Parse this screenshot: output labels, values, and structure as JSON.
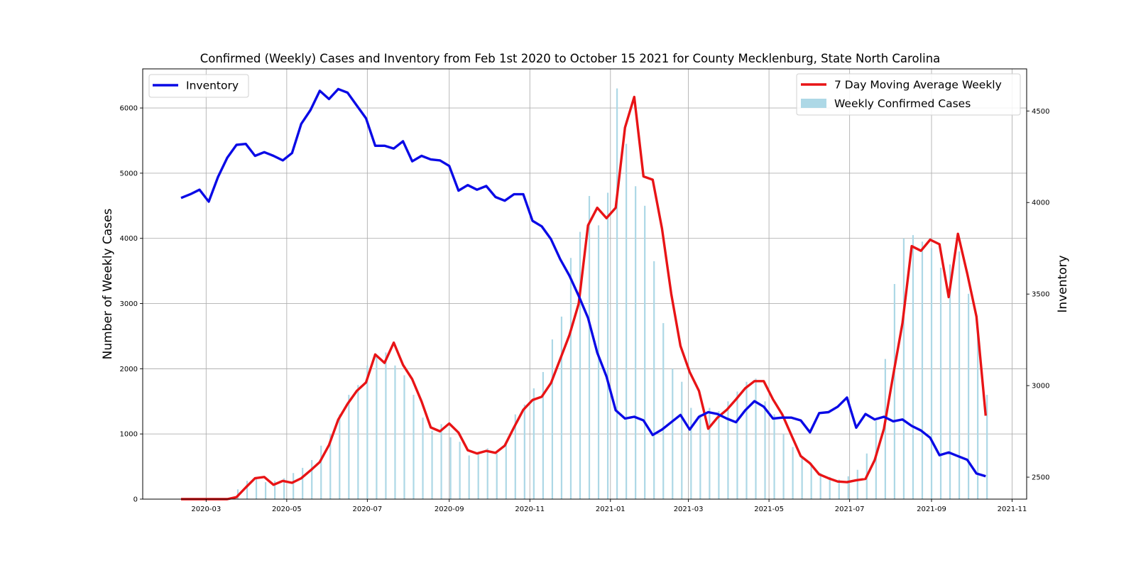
{
  "chart_data": {
    "type": "bar+line",
    "title": "Confirmed (Weekly) Cases and Inventory from Feb 1st 2020 to October 15 2021 for County Mecklenburg, State North Carolina",
    "ylabel_left": "Number of Weekly Cases",
    "ylabel_right": "Inventory",
    "xlim": [
      "2020-01-13",
      "2021-11-12"
    ],
    "ylim_left": [
      0,
      6600
    ],
    "ylim_right": [
      2380,
      4730
    ],
    "grid": true,
    "x_ticks": [
      "2020-03",
      "2020-05",
      "2020-07",
      "2020-09",
      "2020-11",
      "2021-01",
      "2021-03",
      "2021-05",
      "2021-07",
      "2021-09",
      "2021-11"
    ],
    "y_ticks_left": [
      "0",
      "1000",
      "2000",
      "3000",
      "4000",
      "5000",
      "6000"
    ],
    "y_ticks_right": [
      "2500",
      "3000",
      "3500",
      "4000",
      "4500"
    ],
    "legend_left": {
      "placement": "upper-left",
      "entries": [
        "Inventory"
      ]
    },
    "legend_right": {
      "placement": "upper-right",
      "entries": [
        "7 Day Moving Average Weekly",
        "Weekly Confirmed Cases"
      ]
    },
    "series": [
      {
        "name": "Weekly Confirmed Cases",
        "kind": "bar",
        "axis": "left",
        "color": "#add8e6",
        "x": [
          "2020-03-25",
          "2020-04-01",
          "2020-04-08",
          "2020-04-15",
          "2020-04-22",
          "2020-04-29",
          "2020-05-06",
          "2020-05-13",
          "2020-05-20",
          "2020-05-27",
          "2020-06-03",
          "2020-06-10",
          "2020-06-17",
          "2020-06-24",
          "2020-07-01",
          "2020-07-08",
          "2020-07-15",
          "2020-07-22",
          "2020-07-29",
          "2020-08-05",
          "2020-08-12",
          "2020-08-19",
          "2020-08-26",
          "2020-09-02",
          "2020-09-09",
          "2020-09-16",
          "2020-09-23",
          "2020-09-30",
          "2020-10-07",
          "2020-10-14",
          "2020-10-21",
          "2020-10-28",
          "2020-11-04",
          "2020-11-11",
          "2020-11-18",
          "2020-11-25",
          "2020-12-02",
          "2020-12-09",
          "2020-12-16",
          "2020-12-23",
          "2020-12-30",
          "2021-01-06",
          "2021-01-13",
          "2021-01-20",
          "2021-01-27",
          "2021-02-03",
          "2021-02-10",
          "2021-02-17",
          "2021-02-24",
          "2021-03-03",
          "2021-03-10",
          "2021-03-17",
          "2021-03-24",
          "2021-03-31",
          "2021-04-07",
          "2021-04-14",
          "2021-04-21",
          "2021-04-28",
          "2021-05-05",
          "2021-05-12",
          "2021-05-19",
          "2021-05-26",
          "2021-06-02",
          "2021-06-09",
          "2021-06-16",
          "2021-06-23",
          "2021-06-30",
          "2021-07-07",
          "2021-07-14",
          "2021-07-21",
          "2021-07-28",
          "2021-08-04",
          "2021-08-11",
          "2021-08-18",
          "2021-08-25",
          "2021-09-01",
          "2021-09-08",
          "2021-09-15",
          "2021-09-22",
          "2021-09-29",
          "2021-10-06",
          "2021-10-13"
        ],
        "values": [
          150,
          280,
          330,
          260,
          280,
          320,
          400,
          480,
          600,
          820,
          1000,
          1300,
          1600,
          1750,
          2050,
          2200,
          2250,
          2050,
          1900,
          1600,
          1250,
          1050,
          1150,
          950,
          880,
          670,
          690,
          780,
          700,
          850,
          1300,
          1450,
          1700,
          1950,
          2450,
          2800,
          3700,
          4100,
          4650,
          4200,
          4700,
          6300,
          5450,
          4800,
          4500,
          3650,
          2700,
          2000,
          1800,
          1400,
          1300,
          1400,
          1350,
          1500,
          1650,
          1800,
          1850,
          1500,
          1300,
          1000,
          800,
          650,
          550,
          400,
          340,
          300,
          350,
          450,
          700,
          1200,
          2150,
          3300,
          4000,
          4050,
          3950,
          3850,
          3550,
          3600,
          3800,
          3150,
          2600,
          1600
        ]
      },
      {
        "name": "7 Day Moving Average Weekly",
        "kind": "line",
        "axis": "left",
        "color": "#e81416",
        "x": [
          "2020-02-11",
          "2020-02-18",
          "2020-02-25",
          "2020-03-03",
          "2020-03-10",
          "2020-03-17",
          "2020-03-24",
          "2020-03-31",
          "2020-04-07",
          "2020-04-14",
          "2020-04-21",
          "2020-04-28",
          "2020-05-05",
          "2020-05-12",
          "2020-05-19",
          "2020-05-26",
          "2020-06-02",
          "2020-06-09",
          "2020-06-16",
          "2020-06-23",
          "2020-06-30",
          "2020-07-07",
          "2020-07-14",
          "2020-07-21",
          "2020-07-28",
          "2020-08-04",
          "2020-08-11",
          "2020-08-18",
          "2020-08-25",
          "2020-09-01",
          "2020-09-08",
          "2020-09-15",
          "2020-09-22",
          "2020-09-29",
          "2020-10-06",
          "2020-10-13",
          "2020-10-20",
          "2020-10-27",
          "2020-11-03",
          "2020-11-10",
          "2020-11-17",
          "2020-11-24",
          "2020-12-01",
          "2020-12-08",
          "2020-12-15",
          "2020-12-22",
          "2020-12-29",
          "2021-01-05",
          "2021-01-12",
          "2021-01-19",
          "2021-01-26",
          "2021-02-02",
          "2021-02-09",
          "2021-02-16",
          "2021-02-23",
          "2021-03-02",
          "2021-03-09",
          "2021-03-16",
          "2021-03-23",
          "2021-03-30",
          "2021-04-06",
          "2021-04-13",
          "2021-04-20",
          "2021-04-27",
          "2021-05-04",
          "2021-05-11",
          "2021-05-18",
          "2021-05-25",
          "2021-06-01",
          "2021-06-08",
          "2021-06-15",
          "2021-06-22",
          "2021-06-29",
          "2021-07-06",
          "2021-07-13",
          "2021-07-20",
          "2021-07-27",
          "2021-08-03",
          "2021-08-10",
          "2021-08-17",
          "2021-08-24",
          "2021-08-31",
          "2021-09-07",
          "2021-09-14",
          "2021-09-21",
          "2021-09-28",
          "2021-10-05",
          "2021-10-12"
        ],
        "values": [
          0,
          0,
          0,
          0,
          0,
          0,
          30,
          180,
          320,
          340,
          220,
          280,
          250,
          320,
          440,
          570,
          830,
          1220,
          1460,
          1660,
          1790,
          2220,
          2090,
          2400,
          2060,
          1840,
          1500,
          1100,
          1040,
          1160,
          1020,
          750,
          700,
          740,
          710,
          820,
          1100,
          1370,
          1520,
          1570,
          1780,
          2150,
          2520,
          3000,
          4200,
          4470,
          4310,
          4470,
          5700,
          6170,
          4950,
          4900,
          4150,
          3150,
          2350,
          1950,
          1660,
          1080,
          1250,
          1370,
          1530,
          1700,
          1810,
          1810,
          1530,
          1300,
          980,
          660,
          550,
          380,
          320,
          270,
          260,
          290,
          310,
          600,
          1080,
          1900,
          2700,
          3880,
          3810,
          3980,
          3910,
          3100,
          4070,
          3460,
          2800,
          1280
        ]
      },
      {
        "name": "Inventory",
        "kind": "line",
        "axis": "right",
        "color": "#0a0ae6",
        "x": [
          "2020-02-11",
          "2020-02-18",
          "2020-02-25",
          "2020-03-03",
          "2020-03-10",
          "2020-03-17",
          "2020-03-24",
          "2020-03-31",
          "2020-04-07",
          "2020-04-14",
          "2020-04-21",
          "2020-04-28",
          "2020-05-05",
          "2020-05-12",
          "2020-05-19",
          "2020-05-26",
          "2020-06-02",
          "2020-06-09",
          "2020-06-16",
          "2020-06-23",
          "2020-06-30",
          "2020-07-07",
          "2020-07-14",
          "2020-07-21",
          "2020-07-28",
          "2020-08-04",
          "2020-08-11",
          "2020-08-18",
          "2020-08-25",
          "2020-09-01",
          "2020-09-08",
          "2020-09-15",
          "2020-09-22",
          "2020-09-29",
          "2020-10-06",
          "2020-10-13",
          "2020-10-20",
          "2020-10-27",
          "2020-11-03",
          "2020-11-10",
          "2020-11-17",
          "2020-11-24",
          "2020-12-01",
          "2020-12-08",
          "2020-12-15",
          "2020-12-22",
          "2020-12-29",
          "2021-01-05",
          "2021-01-12",
          "2021-01-19",
          "2021-01-26",
          "2021-02-02",
          "2021-02-09",
          "2021-02-16",
          "2021-02-23",
          "2021-03-02",
          "2021-03-09",
          "2021-03-16",
          "2021-03-23",
          "2021-03-30",
          "2021-04-06",
          "2021-04-13",
          "2021-04-20",
          "2021-04-27",
          "2021-05-04",
          "2021-05-11",
          "2021-05-18",
          "2021-05-25",
          "2021-06-01",
          "2021-06-08",
          "2021-06-15",
          "2021-06-22",
          "2021-06-29",
          "2021-07-06",
          "2021-07-13",
          "2021-07-20",
          "2021-07-27",
          "2021-08-03",
          "2021-08-10",
          "2021-08-17",
          "2021-08-24",
          "2021-08-31",
          "2021-09-07",
          "2021-09-14",
          "2021-09-21",
          "2021-09-28",
          "2021-10-05",
          "2021-10-12"
        ],
        "values": [
          4025,
          4045,
          4070,
          4005,
          4140,
          4245,
          4315,
          4320,
          4255,
          4275,
          4255,
          4230,
          4270,
          4430,
          4505,
          4610,
          4565,
          4620,
          4600,
          4530,
          4460,
          4310,
          4310,
          4295,
          4335,
          4225,
          4255,
          4235,
          4230,
          4200,
          4065,
          4095,
          4070,
          4090,
          4030,
          4010,
          4045,
          4045,
          3900,
          3870,
          3800,
          3690,
          3600,
          3490,
          3370,
          3180,
          3050,
          2865,
          2820,
          2830,
          2810,
          2730,
          2760,
          2800,
          2840,
          2760,
          2830,
          2855,
          2845,
          2820,
          2800,
          2865,
          2915,
          2885,
          2820,
          2825,
          2825,
          2810,
          2745,
          2850,
          2855,
          2885,
          2935,
          2770,
          2845,
          2815,
          2830,
          2805,
          2815,
          2780,
          2755,
          2715,
          2620,
          2635,
          2615,
          2595,
          2520,
          2505
        ]
      }
    ]
  }
}
